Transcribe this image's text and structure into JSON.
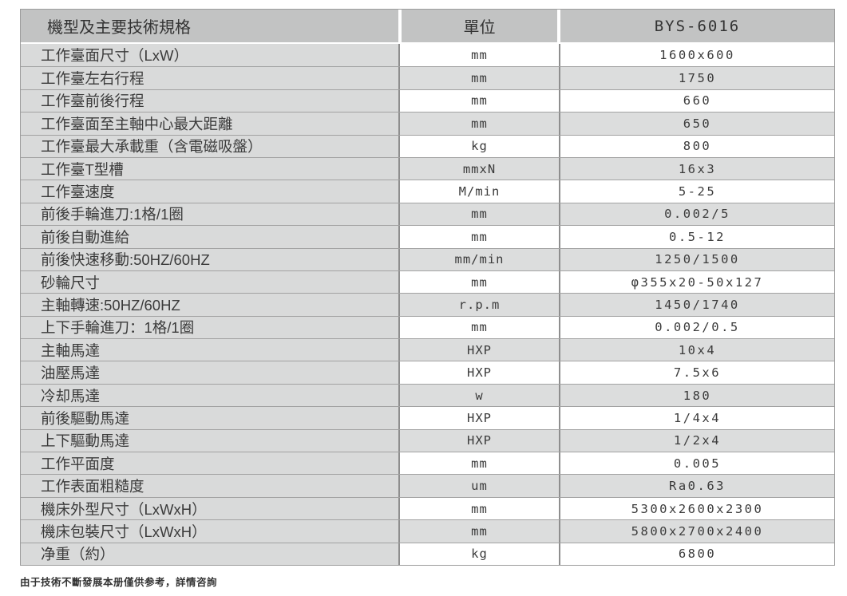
{
  "table": {
    "header": {
      "spec": "機型及主要技術規格",
      "unit": "單位",
      "model": "BYS-6016"
    },
    "rows": [
      {
        "spec": "工作臺面尺寸（LxW）",
        "unit": "mm",
        "value": "1600x600"
      },
      {
        "spec": "工作臺左右行程",
        "unit": "mm",
        "value": "1750"
      },
      {
        "spec": "工作臺前後行程",
        "unit": "mm",
        "value": "660"
      },
      {
        "spec": "工作臺面至主軸中心最大距離",
        "unit": "mm",
        "value": "650"
      },
      {
        "spec": "工作臺最大承載重（含電磁吸盤）",
        "unit": "kg",
        "value": "800"
      },
      {
        "spec": "工作臺T型槽",
        "unit": "mmxN",
        "value": "16x3"
      },
      {
        "spec": "工作臺速度",
        "unit": "M/min",
        "value": "5-25"
      },
      {
        "spec": "前後手輪進刀:1格/1圈",
        "unit": "mm",
        "value": "0.002/5"
      },
      {
        "spec": "前後自動進給",
        "unit": "mm",
        "value": "0.5-12"
      },
      {
        "spec": "前後快速移動:50HZ/60HZ",
        "unit": "mm/min",
        "value": "1250/1500"
      },
      {
        "spec": "砂輪尺寸",
        "unit": "mm",
        "value": "φ355x20-50x127"
      },
      {
        "spec": "主軸轉速:50HZ/60HZ",
        "unit": "r.p.m",
        "value": "1450/1740"
      },
      {
        "spec": "上下手輪進刀：1格/1圈",
        "unit": "mm",
        "value": "0.002/0.5"
      },
      {
        "spec": "主軸馬達",
        "unit": "HXP",
        "value": "10x4"
      },
      {
        "spec": "油壓馬達",
        "unit": "HXP",
        "value": "7.5x6"
      },
      {
        "spec": "冷却馬達",
        "unit": "w",
        "value": "180"
      },
      {
        "spec": "前後驅動馬達",
        "unit": "HXP",
        "value": "1/4x4"
      },
      {
        "spec": "上下驅動馬達",
        "unit": "HXP",
        "value": "1/2x4"
      },
      {
        "spec": "工作平面度",
        "unit": "mm",
        "value": "0.005"
      },
      {
        "spec": "工作表面粗糙度",
        "unit": "um",
        "value": "Ra0.63"
      },
      {
        "spec": "機床外型尺寸（LxWxH）",
        "unit": "mm",
        "value": "5300x2600x2300"
      },
      {
        "spec": "機床包裝尺寸（LxWxH）",
        "unit": "mm",
        "value": "5800x2700x2400"
      },
      {
        "spec": "净重（約）",
        "unit": "kg",
        "value": "6800"
      }
    ]
  },
  "footer": {
    "note": "由于技術不斷發展本册僅供参考，詳情咨詢"
  },
  "colors": {
    "header_bg": "#c2c3c3",
    "spec_column_bg": "#d9dada",
    "row_stripe_bg": "#dcdddd",
    "row_plain_bg": "#ffffff",
    "row_border": "#a2a2a2",
    "column_divider": "#8e8e8e",
    "text": "#3b3b3b"
  }
}
